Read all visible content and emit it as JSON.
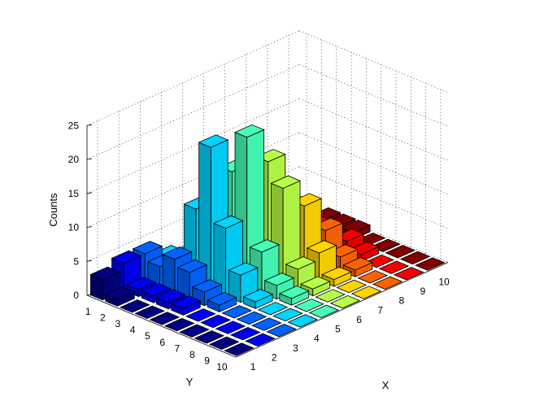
{
  "chart_data": {
    "type": "bar3",
    "title": "",
    "xlabel": "X",
    "ylabel": "Y",
    "zlabel": "Counts",
    "x_ticks": [
      "1",
      "2",
      "3",
      "4",
      "5",
      "6",
      "7",
      "8",
      "9",
      "10"
    ],
    "y_ticks": [
      "1",
      "2",
      "3",
      "4",
      "5",
      "6",
      "7",
      "8",
      "9",
      "10"
    ],
    "z_ticks": [
      "0",
      "5",
      "10",
      "15",
      "20",
      "25"
    ],
    "zlim": [
      0,
      25
    ],
    "grid": true,
    "colormap": "jet",
    "counts_by_y_row": [
      [
        3,
        4,
        4,
        2,
        1,
        1,
        1,
        1,
        1,
        0
      ],
      [
        1,
        1,
        3,
        2,
        1,
        0,
        0,
        0,
        0,
        0
      ],
      [
        0,
        1,
        5,
        11,
        9,
        8,
        5,
        4,
        1,
        1
      ],
      [
        0,
        1,
        4,
        21,
        16,
        13,
        8,
        4,
        2,
        1
      ],
      [
        0,
        1,
        2,
        10,
        22,
        17,
        9,
        3,
        1,
        1
      ],
      [
        0,
        0,
        1,
        4,
        6,
        14,
        10,
        5,
        2,
        0
      ],
      [
        0,
        0,
        0,
        1,
        2,
        3,
        4,
        2,
        1,
        0
      ],
      [
        0,
        0,
        0,
        0,
        1,
        1,
        1,
        1,
        0,
        0
      ],
      [
        0,
        0,
        0,
        0,
        0,
        0,
        0,
        0,
        0,
        0
      ],
      [
        0,
        0,
        0,
        0,
        0,
        0,
        0,
        0,
        0,
        0
      ]
    ]
  }
}
